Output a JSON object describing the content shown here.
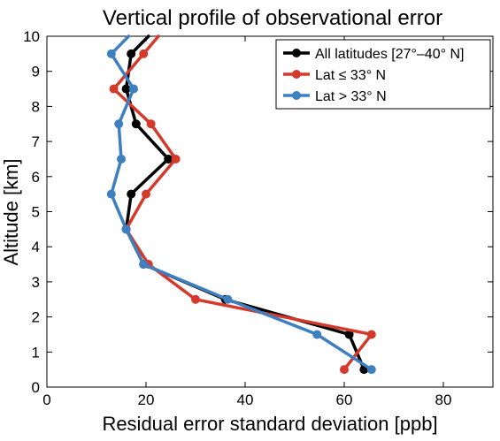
{
  "chart_data": {
    "type": "line",
    "title": "Vertical profile of observational error",
    "xlabel": "Residual error standard deviation [ppb]",
    "ylabel": "Altitude [km]",
    "xlim": [
      0,
      90
    ],
    "ylim": [
      0,
      10
    ],
    "xticks": [
      0,
      20,
      40,
      60,
      80
    ],
    "yticks": [
      0,
      1,
      2,
      3,
      4,
      5,
      6,
      7,
      8,
      9,
      10
    ],
    "legend_position": "top-right",
    "grid": false,
    "series": [
      {
        "name": "All latitudes [27°–40° N]",
        "color": "#000000",
        "points": [
          [
            64.0,
            0.5
          ],
          [
            61.0,
            1.5
          ],
          [
            36.0,
            2.5
          ],
          [
            19.5,
            3.5
          ],
          [
            16.0,
            4.5
          ],
          [
            17.0,
            5.5
          ],
          [
            24.5,
            6.5
          ],
          [
            18.0,
            7.5
          ],
          [
            16.0,
            8.5
          ],
          [
            17.0,
            9.5
          ],
          [
            20.5,
            10.0
          ]
        ]
      },
      {
        "name": "Lat ≤ 33° N",
        "color": "#d33a2c",
        "points": [
          [
            60.0,
            0.5
          ],
          [
            65.5,
            1.5
          ],
          [
            30.0,
            2.5
          ],
          [
            20.5,
            3.5
          ],
          [
            16.0,
            4.5
          ],
          [
            20.0,
            5.5
          ],
          [
            26.0,
            6.5
          ],
          [
            21.0,
            7.5
          ],
          [
            13.5,
            8.5
          ],
          [
            19.5,
            9.5
          ],
          [
            22.5,
            10.0
          ]
        ]
      },
      {
        "name": "Lat > 33° N",
        "color": "#3d7fbf",
        "points": [
          [
            65.5,
            0.5
          ],
          [
            54.5,
            1.5
          ],
          [
            36.5,
            2.5
          ],
          [
            19.5,
            3.5
          ],
          [
            16.0,
            4.5
          ],
          [
            13.0,
            5.5
          ],
          [
            15.0,
            6.5
          ],
          [
            14.5,
            7.5
          ],
          [
            17.5,
            8.5
          ],
          [
            13.0,
            9.5
          ],
          [
            16.5,
            10.0
          ]
        ]
      }
    ]
  }
}
